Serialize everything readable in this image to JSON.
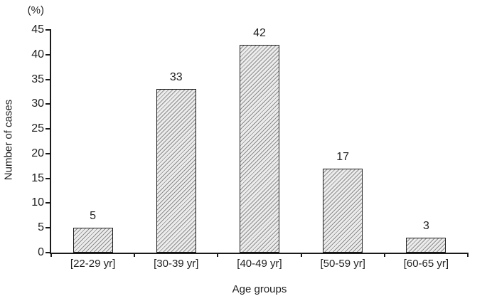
{
  "chart_data": {
    "type": "bar",
    "categories": [
      "[22-29 yr]",
      "[30-39 yr]",
      "[40-49 yr]",
      "[50-59 yr]",
      "[60-65 yr]"
    ],
    "values": [
      5,
      33,
      42,
      17,
      3
    ],
    "title": "",
    "xlabel": "Age groups",
    "ylabel": "Number of cases",
    "y_unit": "(%)",
    "ylim": [
      0,
      45
    ],
    "yticks": [
      0,
      5,
      10,
      15,
      20,
      25,
      30,
      35,
      40,
      45
    ],
    "bar_labels_shown": true,
    "grid": "off",
    "legend": "none",
    "bar_fill_style": "diagonal-hatch",
    "colors": {
      "axis": "#1a1a1a",
      "bar_border": "#1a1a1a",
      "hatch_line": "#8c8c8c",
      "hatch_bg": "#ececec",
      "text": "#1f1f1f"
    }
  }
}
